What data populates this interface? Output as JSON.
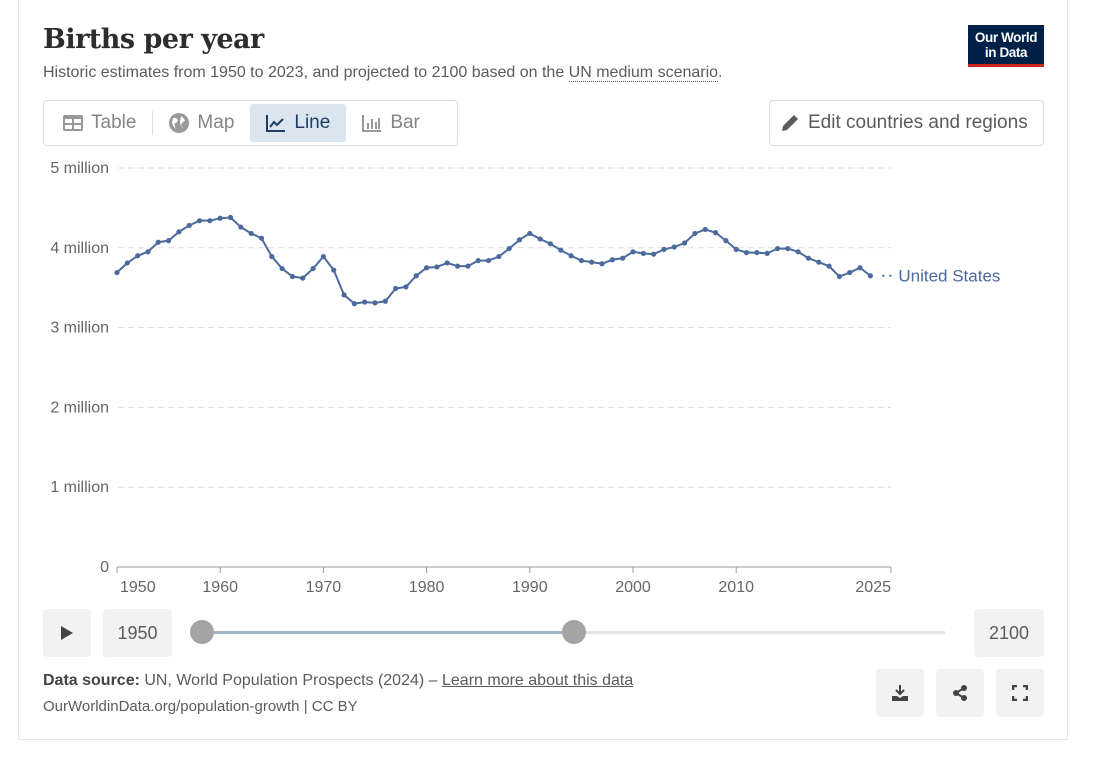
{
  "header": {
    "title": "Births per year",
    "subtitle_prefix": "Historic estimates from 1950 to 2023, and projected to 2100 based on the ",
    "subtitle_link": "UN medium scenario",
    "subtitle_suffix": ".",
    "logo_line1": "Our World",
    "logo_line2": "in Data"
  },
  "tabs": [
    {
      "label": "Table",
      "icon": "table-icon",
      "active": false
    },
    {
      "label": "Map",
      "icon": "globe-icon",
      "active": false
    },
    {
      "label": "Line",
      "icon": "line-chart-icon",
      "active": true
    },
    {
      "label": "Bar",
      "icon": "bar-chart-icon",
      "active": false
    }
  ],
  "edit_button": {
    "label": "Edit countries and regions",
    "icon": "pencil-icon"
  },
  "timeline": {
    "start_label": "1950",
    "end_label": "2100",
    "range_min": 1950,
    "range_max": 2100,
    "selected_start": 1950,
    "selected_end": 2025
  },
  "footer": {
    "source_label": "Data source:",
    "source_text": " UN, World Population Prospects (2024) – ",
    "learn_more": "Learn more about this data",
    "url": "OurWorldinData.org/population-growth | CC BY"
  },
  "colors": {
    "series": "#4c6a9c",
    "accent": "#ce261e",
    "logo_bg": "#002147"
  },
  "chart_data": {
    "type": "line",
    "title": "Births per year",
    "xlabel": "",
    "ylabel": "",
    "xlim": [
      1950,
      2025
    ],
    "ylim": [
      0,
      5000000
    ],
    "y_ticks": [
      {
        "value": 0,
        "label": "0"
      },
      {
        "value": 1000000,
        "label": "1 million"
      },
      {
        "value": 2000000,
        "label": "2 million"
      },
      {
        "value": 3000000,
        "label": "3 million"
      },
      {
        "value": 4000000,
        "label": "4 million"
      },
      {
        "value": 5000000,
        "label": "5 million"
      }
    ],
    "x_ticks": [
      {
        "value": 1950,
        "label": "1950"
      },
      {
        "value": 1960,
        "label": "1960"
      },
      {
        "value": 1970,
        "label": "1970"
      },
      {
        "value": 1980,
        "label": "1980"
      },
      {
        "value": 1990,
        "label": "1990"
      },
      {
        "value": 2000,
        "label": "2000"
      },
      {
        "value": 2010,
        "label": "2010"
      },
      {
        "value": 2025,
        "label": "2025"
      }
    ],
    "grid": "horizontal dashed",
    "legend": "right end-of-line label",
    "series": [
      {
        "name": "United States",
        "x_start": 1950,
        "values": [
          3690000,
          3810000,
          3900000,
          3950000,
          4070000,
          4090000,
          4200000,
          4280000,
          4340000,
          4340000,
          4370000,
          4380000,
          4260000,
          4180000,
          4120000,
          3890000,
          3740000,
          3640000,
          3620000,
          3740000,
          3890000,
          3720000,
          3410000,
          3300000,
          3320000,
          3310000,
          3330000,
          3490000,
          3510000,
          3650000,
          3750000,
          3760000,
          3810000,
          3770000,
          3770000,
          3840000,
          3840000,
          3890000,
          3990000,
          4100000,
          4180000,
          4110000,
          4050000,
          3970000,
          3900000,
          3840000,
          3820000,
          3800000,
          3850000,
          3870000,
          3950000,
          3930000,
          3920000,
          3980000,
          4010000,
          4060000,
          4180000,
          4230000,
          4190000,
          4090000,
          3980000,
          3940000,
          3940000,
          3930000,
          3990000,
          3990000,
          3950000,
          3870000,
          3820000,
          3770000,
          3640000,
          3690000,
          3750000,
          3650000
        ]
      }
    ]
  }
}
